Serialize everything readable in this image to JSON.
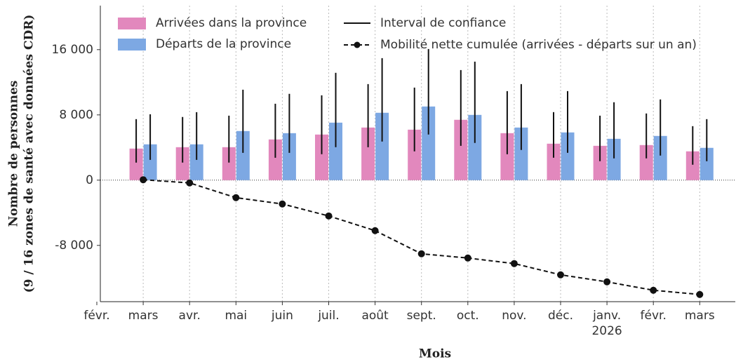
{
  "chart_data": {
    "type": "bar",
    "y_label_lines": [
      "Nombre de personnes",
      "(9 / 16 zones de santé avec données CDR)"
    ],
    "x_label": "Mois",
    "categories": [
      "févr.",
      "mars",
      "avr.",
      "mai",
      "juin",
      "juil.",
      "août",
      "sept.",
      "oct.",
      "nov.",
      "déc.",
      "janv. 2026",
      "févr.",
      "mars"
    ],
    "error_label": "Interval de confiance",
    "series": [
      {
        "name": "Arrivées dans la province",
        "type": "bar",
        "color": "#e288bd",
        "values": [
          null,
          3870,
          4040,
          4040,
          4990,
          5590,
          6450,
          6190,
          7400,
          5760,
          4470,
          4210,
          4300,
          3530
        ],
        "low": [
          null,
          2150,
          2150,
          2150,
          2750,
          3180,
          4040,
          3530,
          4210,
          3180,
          2750,
          2320,
          2670,
          1890
        ],
        "high": [
          null,
          7480,
          7740,
          7910,
          9370,
          10400,
          11780,
          11350,
          13500,
          10920,
          8340,
          7910,
          8170,
          6620
        ]
      },
      {
        "name": "Départs de la province",
        "type": "bar",
        "color": "#7da8e3",
        "values": [
          null,
          4390,
          4390,
          6020,
          5760,
          7050,
          8260,
          9030,
          8000,
          6450,
          5850,
          5070,
          5420,
          3960
        ],
        "low": [
          null,
          2490,
          2490,
          3350,
          3350,
          4040,
          4730,
          5590,
          4560,
          3700,
          3350,
          2670,
          3010,
          2320
        ],
        "high": [
          null,
          8080,
          8340,
          11090,
          10580,
          13160,
          14960,
          16080,
          14530,
          11780,
          10920,
          9550,
          9890,
          7480
        ]
      },
      {
        "name": "Mobilité nette cumulée (arrivées - départs sur un an)",
        "type": "line",
        "color": "#111111",
        "values": [
          null,
          50,
          -340,
          -2150,
          -2920,
          -4390,
          -6190,
          -9030,
          -9550,
          -10230,
          -11610,
          -12470,
          -13500,
          -14020
        ]
      }
    ],
    "ylim": [
      -14900,
      21400
    ],
    "yticks": [
      {
        "value": -8000,
        "label": "-8 000"
      },
      0,
      {
        "value": 8000,
        "label": "8 000"
      },
      {
        "value": 16000,
        "label": "16 000"
      }
    ],
    "grid": true
  }
}
